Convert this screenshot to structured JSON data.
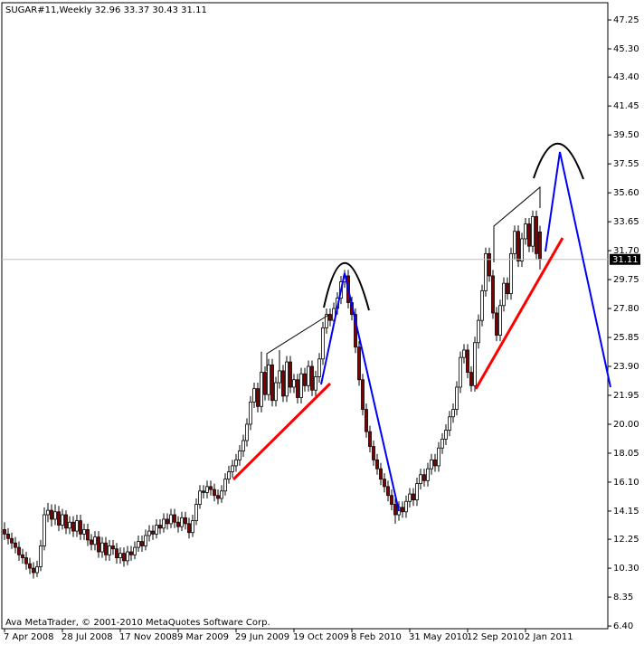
{
  "chart_data": {
    "type": "candlestick",
    "title": "SUGAR#11,Weekly  32.96 33.37 30.43 31.11",
    "footer": "Ava MetaTrader, © 2001-2010 MetaQuotes Software Corp.",
    "up_color": "#ffffff",
    "down_color": "#800000",
    "wick_color": "#000000",
    "ylim": [
      6.22,
      48.41
    ],
    "yticks": [
      47.25,
      {
        "value": 45.3,
        "label": "45.30"
      },
      {
        "value": 43.4,
        "label": "43.40"
      },
      41.45,
      {
        "value": 39.5,
        "label": "39.50"
      },
      37.55,
      {
        "value": 35.6,
        "label": "35.60"
      },
      33.65,
      {
        "value": 31.7,
        "label": "31.70"
      },
      29.75,
      {
        "value": 27.8,
        "label": "27.80"
      },
      25.85,
      {
        "value": 23.9,
        "label": "23.90"
      },
      21.95,
      {
        "value": 20,
        "label": "20.00"
      },
      18.05,
      {
        "value": 16.1,
        "label": "16.10"
      },
      14.15,
      12.25,
      {
        "value": 10.3,
        "label": "10.30"
      },
      8.35,
      {
        "value": 6.4,
        "label": "6.40"
      }
    ],
    "categories": [
      "7 Apr 2008",
      null,
      null,
      null,
      null,
      null,
      null,
      null,
      null,
      null,
      null,
      null,
      null,
      null,
      null,
      null,
      "28 Jul 2008",
      null,
      null,
      null,
      null,
      null,
      null,
      null,
      null,
      null,
      null,
      null,
      null,
      null,
      null,
      null,
      "17 Nov 2008",
      null,
      null,
      null,
      null,
      null,
      null,
      null,
      null,
      null,
      null,
      null,
      null,
      null,
      null,
      null,
      "9 Mar 2009",
      null,
      null,
      null,
      null,
      null,
      null,
      null,
      null,
      null,
      null,
      null,
      null,
      null,
      null,
      null,
      "29 Jun 2009",
      null,
      null,
      null,
      null,
      null,
      null,
      null,
      null,
      null,
      null,
      null,
      null,
      null,
      null,
      null,
      "19 Oct 2009",
      null,
      null,
      null,
      null,
      null,
      null,
      null,
      null,
      null,
      null,
      null,
      null,
      null,
      null,
      null,
      "8 Feb 2010",
      null,
      null,
      null,
      null,
      null,
      null,
      null,
      null,
      null,
      null,
      null,
      null,
      null,
      null,
      null,
      "31 May 2010",
      null,
      null,
      null,
      null,
      null,
      null,
      null,
      null,
      null,
      null,
      null,
      null,
      null,
      null,
      null,
      "12 Sep 2010",
      null,
      null,
      null,
      null,
      null,
      null,
      null,
      null,
      null,
      null,
      null,
      null,
      null,
      null,
      null,
      "2 Jan 2011",
      null,
      null,
      null,
      null
    ],
    "ohlc": [
      [
        12.9,
        13.4,
        12.2,
        12.6
      ],
      [
        12.6,
        13.0,
        11.9,
        12.3
      ],
      [
        12.3,
        12.7,
        11.6,
        12.0
      ],
      [
        12.0,
        12.4,
        11.3,
        11.7
      ],
      [
        11.7,
        12.1,
        10.8,
        11.2
      ],
      [
        11.2,
        11.6,
        10.6,
        11.0
      ],
      [
        11.0,
        11.4,
        10.2,
        10.6
      ],
      [
        10.6,
        11.0,
        9.9,
        10.3
      ],
      [
        10.3,
        10.7,
        9.6,
        10.0
      ],
      [
        10.0,
        10.8,
        9.7,
        10.4
      ],
      [
        10.4,
        12.2,
        10.1,
        11.8
      ],
      [
        11.8,
        14.4,
        11.5,
        13.9
      ],
      [
        13.9,
        14.7,
        13.4,
        14.2
      ],
      [
        14.2,
        14.6,
        13.1,
        13.6
      ],
      [
        13.6,
        14.6,
        13.2,
        14.1
      ],
      [
        14.1,
        14.5,
        12.8,
        13.2
      ],
      [
        13.2,
        14.3,
        12.9,
        13.9
      ],
      [
        13.9,
        14.2,
        12.6,
        13.0
      ],
      [
        13.0,
        13.8,
        12.6,
        13.4
      ],
      [
        13.4,
        13.8,
        12.4,
        12.8
      ],
      [
        12.8,
        13.9,
        12.4,
        13.5
      ],
      [
        13.5,
        13.9,
        12.2,
        12.6
      ],
      [
        12.6,
        13.3,
        12.2,
        12.9
      ],
      [
        12.9,
        13.3,
        11.8,
        12.2
      ],
      [
        12.2,
        12.6,
        11.5,
        11.9
      ],
      [
        11.9,
        12.8,
        11.5,
        12.4
      ],
      [
        12.4,
        12.8,
        11.0,
        11.4
      ],
      [
        11.4,
        12.4,
        11.0,
        12.0
      ],
      [
        12.0,
        12.4,
        10.8,
        11.2
      ],
      [
        11.2,
        12.2,
        10.8,
        11.8
      ],
      [
        11.8,
        12.2,
        11.2,
        11.6
      ],
      [
        11.6,
        12.0,
        10.6,
        11.0
      ],
      [
        11.0,
        11.7,
        10.6,
        11.3
      ],
      [
        11.3,
        11.7,
        10.4,
        10.8
      ],
      [
        10.8,
        11.8,
        10.5,
        11.4
      ],
      [
        11.4,
        11.8,
        10.8,
        11.2
      ],
      [
        11.2,
        12.1,
        10.9,
        11.7
      ],
      [
        11.7,
        12.5,
        11.4,
        12.1
      ],
      [
        12.1,
        12.5,
        11.4,
        11.8
      ],
      [
        11.8,
        12.9,
        11.5,
        12.5
      ],
      [
        12.5,
        13.2,
        12.1,
        12.8
      ],
      [
        12.8,
        13.2,
        12.2,
        12.6
      ],
      [
        12.6,
        13.6,
        12.3,
        13.2
      ],
      [
        13.2,
        13.6,
        12.6,
        13.0
      ],
      [
        13.0,
        14.0,
        12.7,
        13.6
      ],
      [
        13.6,
        14.0,
        12.9,
        13.3
      ],
      [
        13.3,
        14.3,
        13.0,
        13.9
      ],
      [
        13.9,
        14.3,
        13.0,
        13.4
      ],
      [
        13.4,
        13.8,
        12.7,
        13.1
      ],
      [
        13.1,
        14.1,
        12.8,
        13.7
      ],
      [
        13.7,
        14.1,
        12.9,
        13.3
      ],
      [
        13.3,
        13.7,
        12.3,
        12.7
      ],
      [
        12.7,
        13.9,
        12.4,
        13.5
      ],
      [
        13.5,
        15.0,
        13.2,
        14.6
      ],
      [
        14.6,
        15.9,
        14.3,
        15.5
      ],
      [
        15.5,
        15.9,
        15.0,
        15.4
      ],
      [
        15.4,
        16.2,
        15.0,
        15.8
      ],
      [
        15.8,
        16.2,
        15.2,
        15.6
      ],
      [
        15.6,
        16.0,
        14.8,
        15.2
      ],
      [
        15.2,
        15.6,
        14.6,
        15.0
      ],
      [
        15.0,
        15.9,
        14.7,
        15.5
      ],
      [
        15.5,
        16.7,
        15.2,
        16.3
      ],
      [
        16.3,
        17.2,
        16.0,
        16.8
      ],
      [
        16.8,
        17.6,
        16.4,
        17.2
      ],
      [
        17.2,
        18.0,
        16.8,
        17.6
      ],
      [
        17.6,
        18.6,
        17.2,
        18.2
      ],
      [
        18.2,
        19.3,
        17.8,
        18.9
      ],
      [
        18.9,
        20.4,
        18.5,
        20.0
      ],
      [
        20.0,
        21.9,
        19.6,
        21.5
      ],
      [
        21.5,
        22.8,
        21.1,
        22.4
      ],
      [
        22.4,
        22.8,
        20.8,
        21.2
      ],
      [
        21.2,
        24.9,
        20.8,
        23.5
      ],
      [
        23.5,
        23.9,
        21.6,
        22.0
      ],
      [
        22.0,
        24.4,
        21.6,
        24.0
      ],
      [
        24.0,
        24.4,
        21.2,
        21.6
      ],
      [
        21.6,
        23.2,
        21.2,
        22.8
      ],
      [
        22.8,
        25.0,
        22.4,
        23.6
      ],
      [
        23.6,
        24.0,
        21.5,
        21.9
      ],
      [
        21.9,
        24.6,
        21.5,
        24.2
      ],
      [
        24.2,
        24.6,
        22.1,
        22.5
      ],
      [
        22.5,
        23.4,
        22.1,
        23.0
      ],
      [
        23.0,
        23.4,
        21.4,
        21.8
      ],
      [
        21.8,
        23.8,
        21.4,
        23.4
      ],
      [
        23.4,
        23.8,
        22.2,
        22.6
      ],
      [
        22.6,
        24.3,
        22.2,
        23.9
      ],
      [
        23.9,
        24.3,
        21.9,
        22.3
      ],
      [
        22.3,
        23.6,
        21.9,
        23.2
      ],
      [
        23.2,
        24.8,
        22.8,
        24.4
      ],
      [
        24.4,
        26.9,
        24.0,
        26.5
      ],
      [
        26.5,
        27.8,
        26.1,
        27.4
      ],
      [
        27.4,
        27.8,
        26.6,
        27.0
      ],
      [
        27.0,
        28.2,
        26.6,
        27.8
      ],
      [
        27.8,
        28.9,
        27.4,
        28.5
      ],
      [
        28.5,
        30.0,
        28.1,
        29.6
      ],
      [
        29.6,
        30.4,
        29.2,
        30.0
      ],
      [
        30.0,
        30.4,
        27.8,
        28.2
      ],
      [
        28.2,
        28.6,
        27.0,
        27.4
      ],
      [
        27.4,
        27.8,
        24.8,
        25.2
      ],
      [
        25.2,
        25.6,
        22.6,
        23.0
      ],
      [
        23.0,
        23.4,
        20.6,
        21.0
      ],
      [
        21.0,
        21.4,
        19.1,
        19.5
      ],
      [
        19.5,
        19.9,
        18.1,
        18.5
      ],
      [
        18.5,
        18.9,
        17.2,
        17.6
      ],
      [
        17.6,
        18.0,
        16.6,
        17.0
      ],
      [
        17.0,
        17.4,
        15.9,
        16.3
      ],
      [
        16.3,
        16.7,
        15.4,
        15.8
      ],
      [
        15.8,
        16.2,
        14.8,
        15.2
      ],
      [
        15.2,
        15.6,
        14.2,
        14.6
      ],
      [
        14.6,
        15.0,
        13.3,
        13.9
      ],
      [
        13.9,
        14.8,
        13.5,
        14.4
      ],
      [
        14.4,
        14.8,
        13.7,
        14.1
      ],
      [
        14.1,
        15.2,
        13.7,
        14.8
      ],
      [
        14.8,
        15.7,
        14.4,
        15.3
      ],
      [
        15.3,
        15.7,
        14.5,
        14.9
      ],
      [
        14.9,
        16.4,
        14.5,
        16.0
      ],
      [
        16.0,
        17.0,
        15.6,
        16.6
      ],
      [
        16.6,
        17.0,
        15.8,
        16.2
      ],
      [
        16.2,
        17.4,
        15.8,
        17.0
      ],
      [
        17.0,
        18.0,
        16.6,
        17.6
      ],
      [
        17.6,
        18.0,
        16.8,
        17.2
      ],
      [
        17.2,
        18.8,
        16.8,
        18.4
      ],
      [
        18.4,
        19.4,
        18.0,
        19.0
      ],
      [
        19.0,
        20.0,
        18.6,
        19.6
      ],
      [
        19.6,
        20.9,
        19.2,
        20.5
      ],
      [
        20.5,
        21.4,
        20.1,
        21.0
      ],
      [
        21.0,
        22.9,
        20.6,
        22.5
      ],
      [
        22.5,
        24.9,
        22.1,
        24.5
      ],
      [
        24.5,
        25.4,
        24.1,
        25.0
      ],
      [
        25.0,
        25.4,
        23.1,
        23.5
      ],
      [
        23.5,
        23.9,
        22.2,
        22.6
      ],
      [
        22.6,
        25.9,
        22.2,
        25.5
      ],
      [
        25.5,
        27.4,
        25.1,
        27.0
      ],
      [
        27.0,
        29.4,
        26.6,
        29.0
      ],
      [
        29.0,
        31.9,
        28.6,
        31.5
      ],
      [
        31.5,
        31.9,
        29.6,
        30.0
      ],
      [
        30.0,
        30.4,
        27.1,
        27.5
      ],
      [
        27.5,
        27.9,
        25.6,
        26.0
      ],
      [
        26.0,
        28.4,
        25.6,
        28.0
      ],
      [
        28.0,
        29.9,
        27.6,
        29.5
      ],
      [
        29.5,
        29.9,
        28.4,
        28.8
      ],
      [
        28.8,
        31.9,
        28.4,
        31.5
      ],
      [
        31.5,
        33.4,
        31.1,
        33.0
      ],
      [
        33.0,
        33.4,
        30.6,
        31.0
      ],
      [
        31.0,
        32.9,
        30.6,
        32.5
      ],
      [
        32.5,
        33.9,
        32.1,
        33.5
      ],
      [
        33.5,
        33.9,
        31.6,
        32.0
      ],
      [
        32.0,
        34.4,
        31.6,
        34.0
      ],
      [
        34.0,
        34.4,
        31.1,
        31.5
      ],
      [
        32.96,
        33.37,
        30.43,
        31.11
      ]
    ]
  }
}
